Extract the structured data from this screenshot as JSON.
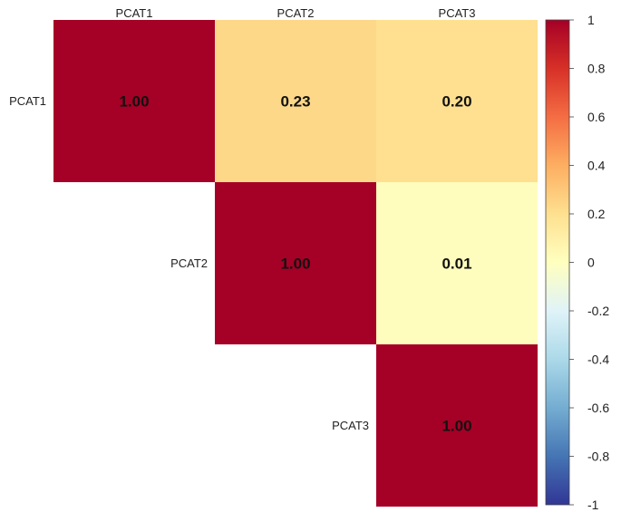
{
  "chart_data": {
    "type": "heatmap",
    "title": "",
    "layout": "upper-triangle correlation matrix",
    "variables": [
      "PCAT1",
      "PCAT2",
      "PCAT3"
    ],
    "values": [
      [
        1.0,
        0.23,
        0.2
      ],
      [
        null,
        1.0,
        0.01
      ],
      [
        null,
        null,
        1.0
      ]
    ],
    "cell_labels": [
      [
        "1.00",
        "0.23",
        "0.20"
      ],
      [
        "",
        "1.00",
        "0.01"
      ],
      [
        "",
        "",
        "1.00"
      ]
    ],
    "color_scale": {
      "range": [
        -1,
        1
      ],
      "ticks": [
        "1",
        "0.8",
        "0.6",
        "0.4",
        "0.2",
        "0",
        "-0.2",
        "-0.4",
        "-0.6",
        "-0.8",
        "-1"
      ],
      "palette": [
        "#313695",
        "#4575b4",
        "#74add1",
        "#abd9e9",
        "#e0f3f8",
        "#ffffbf",
        "#fee090",
        "#fdae61",
        "#f46d43",
        "#d73027",
        "#a50026"
      ]
    },
    "legend": "right"
  }
}
